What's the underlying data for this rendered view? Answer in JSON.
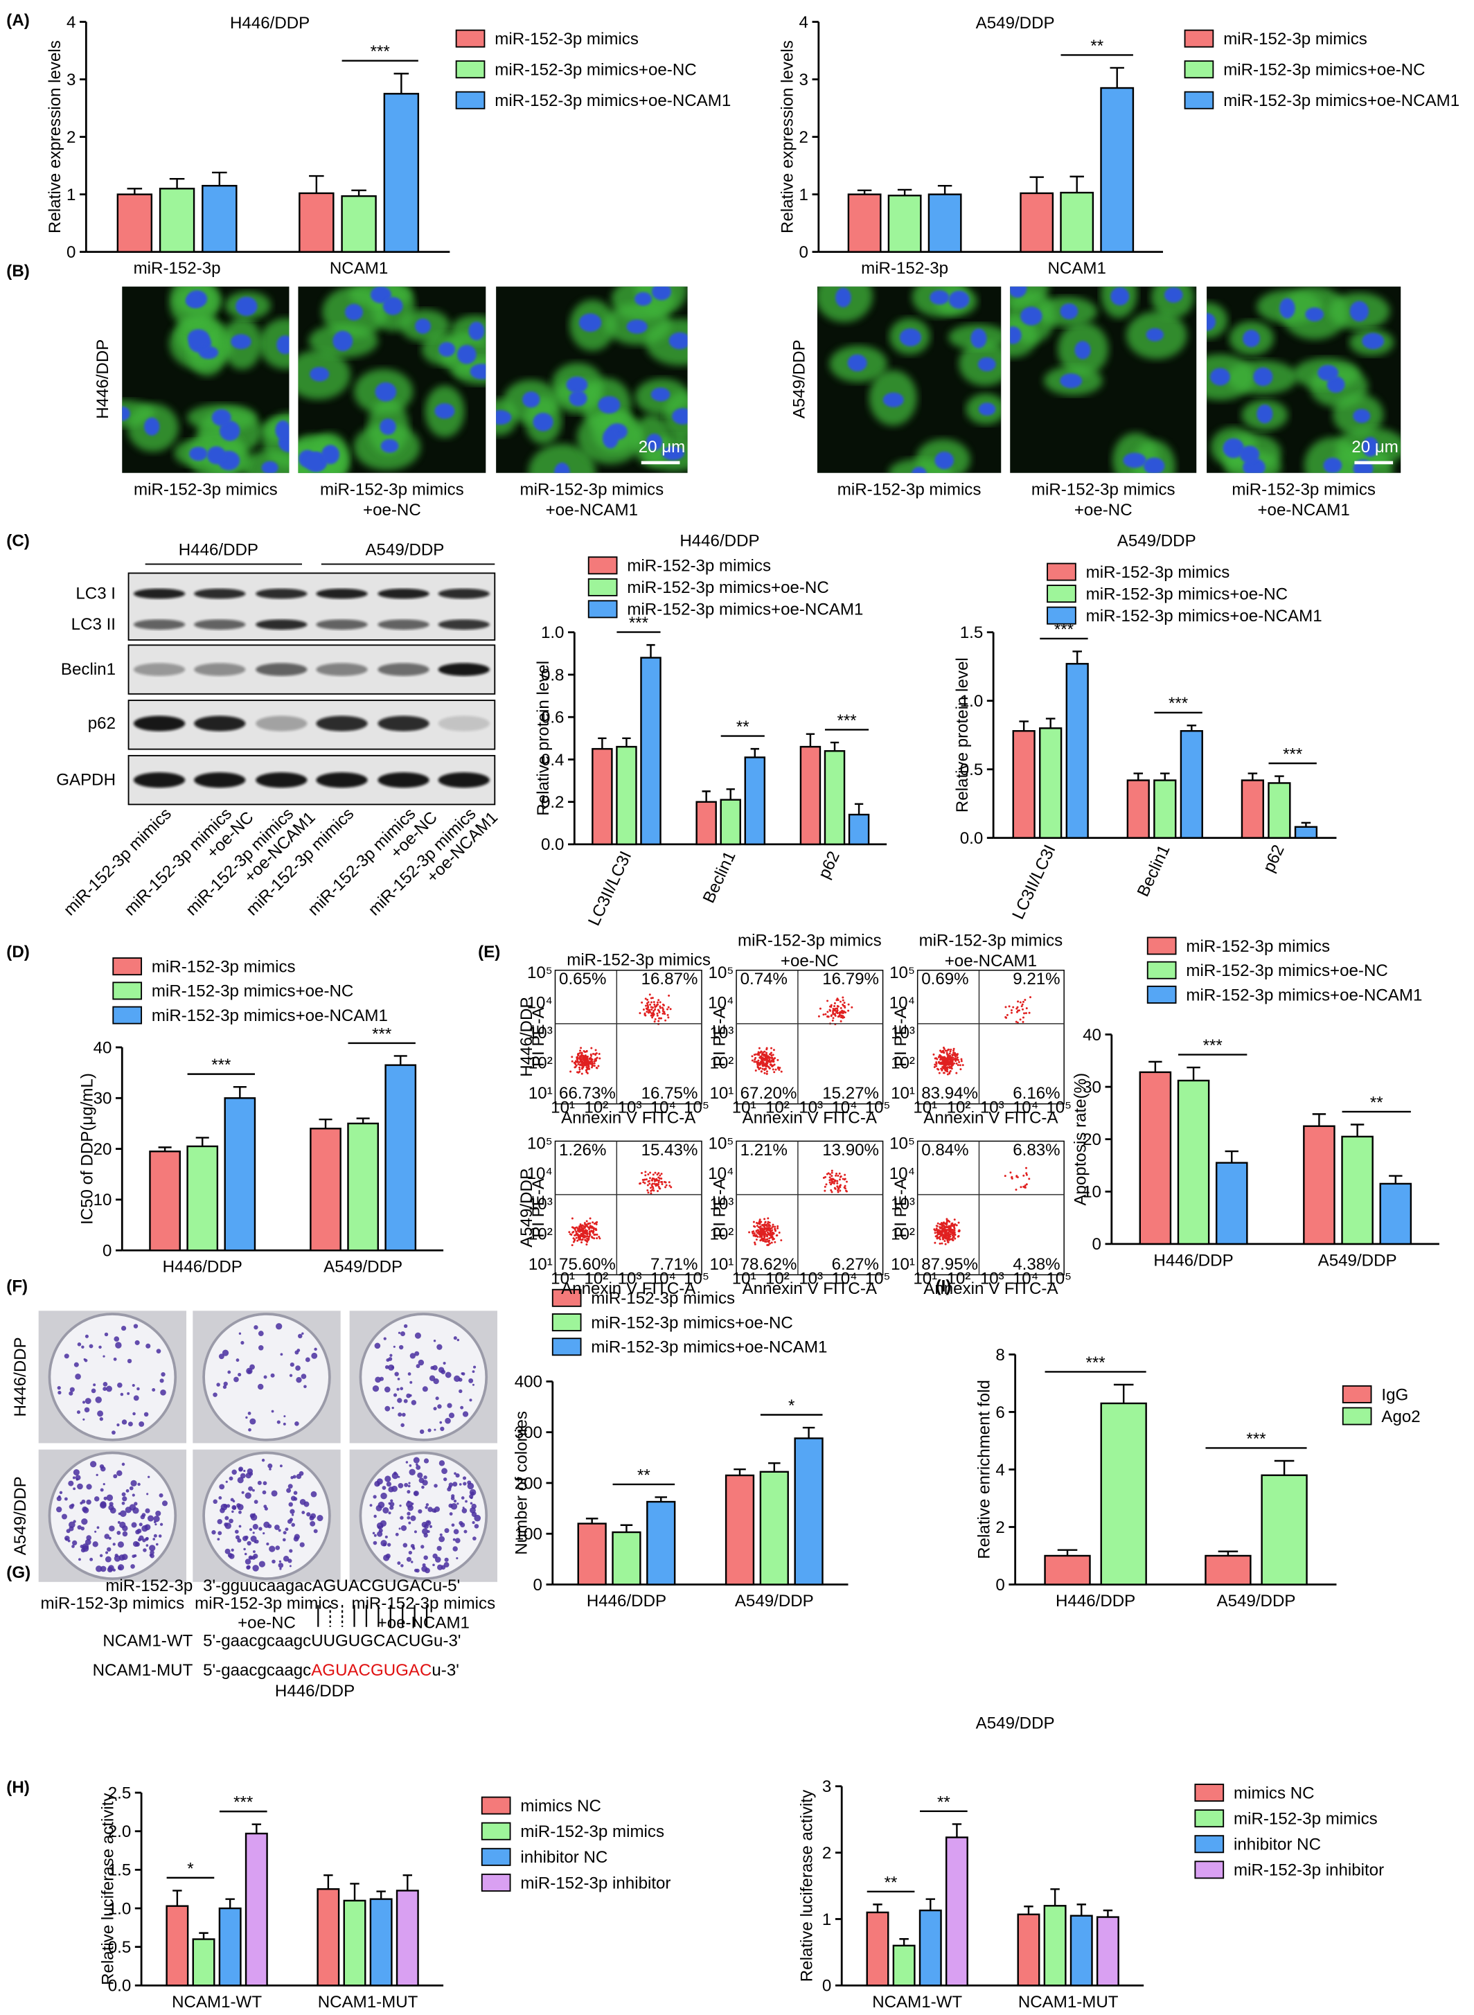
{
  "panel_labels": [
    "(A)",
    "(B)",
    "(C)",
    "(D)",
    "(E)",
    "(F)",
    "(G)",
    "(H)",
    "(I)"
  ],
  "chart_data": [
    {
      "type": "bar",
      "title": "H446/DDP",
      "y_label": "Relative expression levels",
      "categories": [
        "miR-152-3p",
        "NCAM1"
      ],
      "series": [
        {
          "name": "miR-152-3p mimics",
          "color": "#f47a7a",
          "values": [
            1.0,
            1.02
          ],
          "errors": [
            0.1,
            0.3
          ]
        },
        {
          "name": "miR-152-3p mimics+oe-NC",
          "color": "#9ef59a",
          "values": [
            1.1,
            0.97
          ],
          "errors": [
            0.17,
            0.1
          ]
        },
        {
          "name": "miR-152-3p mimics+oe-NCAM1",
          "color": "#55a6f5",
          "values": [
            1.15,
            2.75
          ],
          "errors": [
            0.23,
            0.35
          ]
        }
      ],
      "ylim": [
        0,
        4
      ],
      "yticks": [
        0,
        1,
        2,
        3,
        4
      ],
      "annotations": [
        "***"
      ]
    },
    {
      "type": "bar",
      "title": "A549/DDP",
      "y_label": "Relative expression levels",
      "categories": [
        "miR-152-3p",
        "NCAM1"
      ],
      "series": [
        {
          "name": "miR-152-3p mimics",
          "color": "#f47a7a",
          "values": [
            1.0,
            1.02
          ],
          "errors": [
            0.07,
            0.28
          ]
        },
        {
          "name": "miR-152-3p mimics+oe-NC",
          "color": "#9ef59a",
          "values": [
            0.98,
            1.03
          ],
          "errors": [
            0.1,
            0.28
          ]
        },
        {
          "name": "miR-152-3p mimics+oe-NCAM1",
          "color": "#55a6f5",
          "values": [
            1.0,
            2.85
          ],
          "errors": [
            0.15,
            0.35
          ]
        }
      ],
      "ylim": [
        0,
        4
      ],
      "yticks": [
        0,
        1,
        2,
        3,
        4
      ],
      "annotations": [
        "**"
      ]
    },
    {
      "type": "bar",
      "title": "H446/DDP",
      "y_label": "Relative protein level",
      "categories": [
        "LC3II/LC3I",
        "Beclin1",
        "p62"
      ],
      "series": [
        {
          "name": "miR-152-3p mimics",
          "color": "#f47a7a",
          "values": [
            0.45,
            0.2,
            0.46
          ],
          "errors": [
            0.05,
            0.05,
            0.06
          ]
        },
        {
          "name": "miR-152-3p mimics+oe-NC",
          "color": "#9ef59a",
          "values": [
            0.46,
            0.21,
            0.44
          ],
          "errors": [
            0.04,
            0.05,
            0.04
          ]
        },
        {
          "name": "miR-152-3p mimics+oe-NCAM1",
          "color": "#55a6f5",
          "values": [
            0.88,
            0.41,
            0.14
          ],
          "errors": [
            0.06,
            0.04,
            0.05
          ]
        }
      ],
      "ylim": [
        0,
        1.0
      ],
      "yticks": [
        {
          "value": 0,
          "label": "0.0"
        },
        0.2,
        0.4,
        0.6,
        0.8,
        {
          "value": 1,
          "label": "1.0"
        }
      ],
      "annotations": [
        "***",
        "**",
        "***"
      ]
    },
    {
      "type": "bar",
      "title": "A549/DDP",
      "y_label": "Relative protein level",
      "categories": [
        "LC3II/LC3I",
        "Beclin1",
        "p62"
      ],
      "series": [
        {
          "name": "miR-152-3p mimics",
          "color": "#f47a7a",
          "values": [
            0.78,
            0.42,
            0.42
          ],
          "errors": [
            0.07,
            0.05,
            0.05
          ]
        },
        {
          "name": "miR-152-3p mimics+oe-NC",
          "color": "#9ef59a",
          "values": [
            0.8,
            0.42,
            0.4
          ],
          "errors": [
            0.07,
            0.05,
            0.05
          ]
        },
        {
          "name": "miR-152-3p mimics+oe-NCAM1",
          "color": "#55a6f5",
          "values": [
            1.27,
            0.78,
            0.08
          ],
          "errors": [
            0.09,
            0.04,
            0.03
          ]
        }
      ],
      "ylim": [
        0,
        1.5
      ],
      "yticks": [
        {
          "value": 0,
          "label": "0.0"
        },
        0.5,
        {
          "value": 1,
          "label": "1.0"
        },
        1.5
      ],
      "annotations": [
        "***",
        "***",
        "***"
      ]
    },
    {
      "type": "bar",
      "y_label": "IC50 of DDP(μg/mL)",
      "categories": [
        "H446/DDP",
        "A549/DDP"
      ],
      "series": [
        {
          "name": "miR-152-3p mimics",
          "color": "#f47a7a",
          "values": [
            19.5,
            24
          ],
          "errors": [
            0.8,
            1.8
          ]
        },
        {
          "name": "miR-152-3p mimics+oe-NC",
          "color": "#9ef59a",
          "values": [
            20.5,
            25
          ],
          "errors": [
            1.7,
            1
          ]
        },
        {
          "name": "miR-152-3p mimics+oe-NCAM1",
          "color": "#55a6f5",
          "values": [
            30,
            36.5
          ],
          "errors": [
            2.2,
            1.8
          ]
        }
      ],
      "ylim": [
        0,
        40
      ],
      "yticks": [
        0,
        10,
        20,
        30,
        40
      ],
      "annotations": [
        "***",
        "***"
      ]
    },
    {
      "type": "bar",
      "y_label": "Apoptosis rate(%)",
      "categories": [
        "H446/DDP",
        "A549/DDP"
      ],
      "series": [
        {
          "name": "miR-152-3p mimics",
          "color": "#f47a7a",
          "values": [
            32.8,
            22.5
          ],
          "errors": [
            2,
            2.3
          ]
        },
        {
          "name": "miR-152-3p mimics+oe-NC",
          "color": "#9ef59a",
          "values": [
            31.2,
            20.5
          ],
          "errors": [
            2.5,
            2.3
          ]
        },
        {
          "name": "miR-152-3p mimics+oe-NCAM1",
          "color": "#55a6f5",
          "values": [
            15.5,
            11.5
          ],
          "errors": [
            2.2,
            1.5
          ]
        }
      ],
      "ylim": [
        0,
        40
      ],
      "yticks": [
        0,
        10,
        20,
        30,
        40
      ],
      "annotations": [
        "***",
        "**"
      ]
    },
    {
      "type": "bar",
      "y_label": "Number of colonies",
      "categories": [
        "H446/DDP",
        "A549/DDP"
      ],
      "series": [
        {
          "name": "miR-152-3p mimics",
          "color": "#f47a7a",
          "values": [
            120,
            215
          ],
          "errors": [
            10,
            12
          ]
        },
        {
          "name": "miR-152-3p mimics+oe-NC",
          "color": "#9ef59a",
          "values": [
            103,
            222
          ],
          "errors": [
            14,
            17
          ]
        },
        {
          "name": "miR-152-3p mimics+oe-NCAM1",
          "color": "#55a6f5",
          "values": [
            163,
            288
          ],
          "errors": [
            9,
            21
          ]
        }
      ],
      "ylim": [
        0,
        400
      ],
      "yticks": [
        0,
        100,
        200,
        300,
        400
      ],
      "annotations": [
        "**",
        "*"
      ]
    },
    {
      "type": "bar",
      "y_label": "Relative enrichment fold",
      "categories": [
        "H446/DDP",
        "A549/DDP"
      ],
      "series": [
        {
          "name": "IgG",
          "color": "#f47a7a",
          "values": [
            1,
            1
          ],
          "errors": [
            0.2,
            0.15
          ]
        },
        {
          "name": "Ago2",
          "color": "#9ef59a",
          "values": [
            6.3,
            3.8
          ],
          "errors": [
            0.65,
            0.5
          ]
        }
      ],
      "ylim": [
        0,
        8
      ],
      "yticks": [
        0,
        2,
        4,
        6,
        8
      ],
      "annotations": [
        "***",
        "***"
      ]
    },
    {
      "type": "bar",
      "title": "H446/DDP",
      "y_label": "Relative luciferase activity",
      "categories": [
        "NCAM1-WT",
        "NCAM1-MUT"
      ],
      "series": [
        {
          "name": "mimics NC",
          "color": "#f47a7a",
          "values": [
            1.03,
            1.25
          ],
          "errors": [
            0.2,
            0.18
          ]
        },
        {
          "name": "miR-152-3p mimics",
          "color": "#9ef59a",
          "values": [
            0.6,
            1.1
          ],
          "errors": [
            0.08,
            0.22
          ]
        },
        {
          "name": "inhibitor NC",
          "color": "#55a6f5",
          "values": [
            1.0,
            1.12
          ],
          "errors": [
            0.12,
            0.1
          ]
        },
        {
          "name": "miR-152-3p inhibitor",
          "color": "#d9a0f2",
          "values": [
            1.97,
            1.23
          ],
          "errors": [
            0.12,
            0.2
          ]
        }
      ],
      "ylim": [
        0,
        2.5
      ],
      "yticks": [
        {
          "value": 0,
          "label": "0.0"
        },
        0.5,
        {
          "value": 1,
          "label": "1.0"
        },
        1.5,
        {
          "value": 2,
          "label": "2.0"
        },
        2.5
      ],
      "annotations": [
        "*",
        "***"
      ]
    },
    {
      "type": "bar",
      "title": "A549/DDP",
      "y_label": "Relative luciferase activity",
      "categories": [
        "NCAM1-WT",
        "NCAM1-MUT"
      ],
      "series": [
        {
          "name": "mimics NC",
          "color": "#f47a7a",
          "values": [
            1.1,
            1.07
          ],
          "errors": [
            0.12,
            0.12
          ]
        },
        {
          "name": "miR-152-3p mimics",
          "color": "#9ef59a",
          "values": [
            0.6,
            1.2
          ],
          "errors": [
            0.1,
            0.25
          ]
        },
        {
          "name": "inhibitor NC",
          "color": "#55a6f5",
          "values": [
            1.13,
            1.05
          ],
          "errors": [
            0.17,
            0.17
          ]
        },
        {
          "name": "miR-152-3p inhibitor",
          "color": "#d9a0f2",
          "values": [
            2.23,
            1.03
          ],
          "errors": [
            0.2,
            0.1
          ]
        }
      ],
      "ylim": [
        0,
        3
      ],
      "yticks": [
        0,
        1,
        2,
        3
      ],
      "annotations": [
        "**",
        "**"
      ]
    }
  ],
  "panel_b": {
    "cell_lines": [
      "H446/DDP",
      "A549/DDP"
    ],
    "captions": [
      [
        "miR-152-3p mimics"
      ],
      [
        "miR-152-3p mimics",
        "+oe-NC"
      ],
      [
        "miR-152-3p mimics",
        "+oe-NCAM1"
      ]
    ],
    "scale_bar": "20 μm"
  },
  "panel_c": {
    "cell_lines": [
      "H446/DDP",
      "A549/DDP"
    ],
    "proteins": [
      "LC3 I",
      "LC3 II",
      "Beclin1",
      "p62",
      "GAPDH"
    ],
    "lanes": [
      [
        "miR-152-3p mimics"
      ],
      [
        "miR-152-3p mimics",
        "+oe-NC"
      ],
      [
        "miR-152-3p mimics",
        "+oe-NCAM1"
      ]
    ]
  },
  "panel_e": {
    "columns": [
      [
        "miR-152-3p mimics"
      ],
      [
        "miR-152-3p mimics",
        "+oe-NC"
      ],
      [
        "miR-152-3p mimics",
        "+oe-NCAM1"
      ]
    ],
    "rows": [
      "H446/DDP",
      "A549/DDP"
    ],
    "x_axis": "Annexin V FITC-A",
    "y_axis": "PI PE-A",
    "axis_ticks": [
      "10¹",
      "10²",
      "10³",
      "10⁴",
      "10⁵"
    ],
    "quadrants": [
      [
        [
          "0.65%",
          "16.87%",
          "66.73%",
          "16.75%"
        ],
        [
          "0.74%",
          "16.79%",
          "67.20%",
          "15.27%"
        ],
        [
          "0.69%",
          "9.21%",
          "83.94%",
          "6.16%"
        ]
      ],
      [
        [
          "1.26%",
          "15.43%",
          "75.60%",
          "7.71%"
        ],
        [
          "1.21%",
          "13.90%",
          "78.62%",
          "6.27%"
        ],
        [
          "0.84%",
          "6.83%",
          "87.95%",
          "4.38%"
        ]
      ]
    ]
  },
  "panel_f": {
    "rows": [
      "H446/DDP",
      "A549/DDP"
    ],
    "captions": [
      [
        "miR-152-3p mimics"
      ],
      [
        "miR-152-3p mimics",
        "+oe-NC"
      ],
      [
        "miR-152-3p mimics",
        "+oe-NCAM1"
      ]
    ]
  },
  "panel_g": {
    "rows": [
      {
        "label": "miR-152-3p",
        "sequence": [
          "3'-gguucaagac",
          "AGUACGUGAC",
          "u-5'"
        ]
      },
      {
        "label": "NCAM1-WT",
        "sequence": [
          "5'-gaacgcaagc",
          "UUGUGCACUG",
          "u-3'"
        ]
      },
      {
        "label": "NCAM1-MUT",
        "sequence": [
          "5'-gaacgcaagc",
          "AGUACGUGAC",
          "u-3'"
        ]
      }
    ]
  }
}
